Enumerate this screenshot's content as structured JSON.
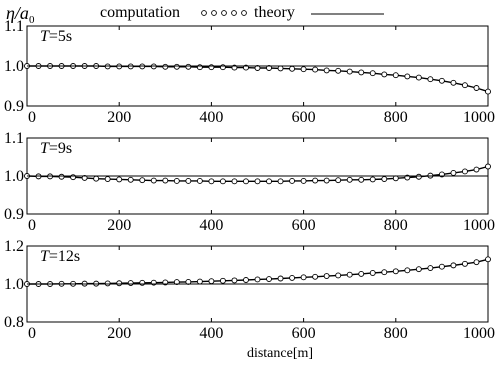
{
  "figure": {
    "ylabel": "η/a",
    "ylabel_sub": "0",
    "xlabel": "distance[m]"
  },
  "legend": {
    "computation_label": "computation",
    "theory_label": "theory"
  },
  "chart_data": [
    {
      "type": "scatter",
      "panel_label_var": "T",
      "panel_label_value": "=5s",
      "xlim": [
        0,
        1000
      ],
      "ylim": [
        0.9,
        1.1
      ],
      "x_ticks": [
        "0",
        "200",
        "400",
        "600",
        "800",
        "1000"
      ],
      "y_ticks": [
        "1.1",
        "1.0",
        "0.9"
      ],
      "series": [
        {
          "name": "computation",
          "x": [
            0,
            25,
            50,
            75,
            100,
            125,
            150,
            175,
            200,
            225,
            250,
            275,
            300,
            325,
            350,
            375,
            400,
            425,
            450,
            475,
            500,
            525,
            550,
            575,
            600,
            625,
            650,
            675,
            700,
            725,
            750,
            775,
            800,
            825,
            850,
            875,
            900,
            925,
            950,
            975,
            1000
          ],
          "y": [
            1.0,
            1.0,
            1.0,
            1.0,
            1.0,
            1.0,
            1.0,
            0.999,
            0.999,
            0.999,
            0.999,
            0.999,
            0.998,
            0.998,
            0.998,
            0.997,
            0.997,
            0.997,
            0.996,
            0.996,
            0.995,
            0.995,
            0.994,
            0.993,
            0.992,
            0.991,
            0.989,
            0.988,
            0.986,
            0.984,
            0.982,
            0.979,
            0.977,
            0.974,
            0.971,
            0.967,
            0.963,
            0.958,
            0.952,
            0.945,
            0.936
          ]
        },
        {
          "name": "theory",
          "x": [
            0,
            1000
          ],
          "y": [
            1.0,
            1.0
          ]
        }
      ]
    },
    {
      "type": "scatter",
      "panel_label_var": "T",
      "panel_label_value": "=9s",
      "xlim": [
        0,
        1000
      ],
      "ylim": [
        0.9,
        1.1
      ],
      "x_ticks": [
        "0",
        "200",
        "400",
        "600",
        "800",
        "1000"
      ],
      "y_ticks": [
        "1.1",
        "1.0",
        "0.9"
      ],
      "series": [
        {
          "name": "computation",
          "x": [
            0,
            25,
            50,
            75,
            100,
            125,
            150,
            175,
            200,
            225,
            250,
            275,
            300,
            325,
            350,
            375,
            400,
            425,
            450,
            475,
            500,
            525,
            550,
            575,
            600,
            625,
            650,
            675,
            700,
            725,
            750,
            775,
            800,
            825,
            850,
            875,
            900,
            925,
            950,
            975,
            1000
          ],
          "y": [
            1.0,
            0.999,
            0.999,
            0.998,
            0.997,
            0.995,
            0.993,
            0.992,
            0.991,
            0.99,
            0.989,
            0.988,
            0.988,
            0.987,
            0.987,
            0.987,
            0.986,
            0.986,
            0.986,
            0.986,
            0.986,
            0.986,
            0.986,
            0.987,
            0.987,
            0.988,
            0.988,
            0.989,
            0.99,
            0.99,
            0.991,
            0.992,
            0.994,
            0.996,
            0.998,
            1.001,
            1.004,
            1.008,
            1.012,
            1.017,
            1.025
          ]
        },
        {
          "name": "theory",
          "x": [
            0,
            1000
          ],
          "y": [
            1.0,
            1.0
          ]
        }
      ]
    },
    {
      "type": "scatter",
      "panel_label_var": "T",
      "panel_label_value": "=12s",
      "xlim": [
        0,
        1000
      ],
      "ylim": [
        0.8,
        1.2
      ],
      "x_ticks": [
        "0",
        "200",
        "400",
        "600",
        "800",
        "1000"
      ],
      "y_ticks": [
        "1.2",
        "1.0",
        "0.8"
      ],
      "series": [
        {
          "name": "computation",
          "x": [
            0,
            25,
            50,
            75,
            100,
            125,
            150,
            175,
            200,
            225,
            250,
            275,
            300,
            325,
            350,
            375,
            400,
            425,
            450,
            475,
            500,
            525,
            550,
            575,
            600,
            625,
            650,
            675,
            700,
            725,
            750,
            775,
            800,
            825,
            850,
            875,
            900,
            925,
            950,
            975,
            1000
          ],
          "y": [
            1.0,
            1.0,
            1.0,
            1.001,
            1.001,
            1.002,
            1.002,
            1.003,
            1.004,
            1.005,
            1.006,
            1.007,
            1.008,
            1.01,
            1.011,
            1.013,
            1.015,
            1.017,
            1.019,
            1.021,
            1.024,
            1.026,
            1.029,
            1.032,
            1.035,
            1.038,
            1.042,
            1.045,
            1.049,
            1.053,
            1.058,
            1.062,
            1.067,
            1.072,
            1.078,
            1.084,
            1.091,
            1.098,
            1.106,
            1.115,
            1.13
          ]
        },
        {
          "name": "theory",
          "x": [
            0,
            1000
          ],
          "y": [
            1.0,
            1.0
          ]
        }
      ]
    }
  ]
}
